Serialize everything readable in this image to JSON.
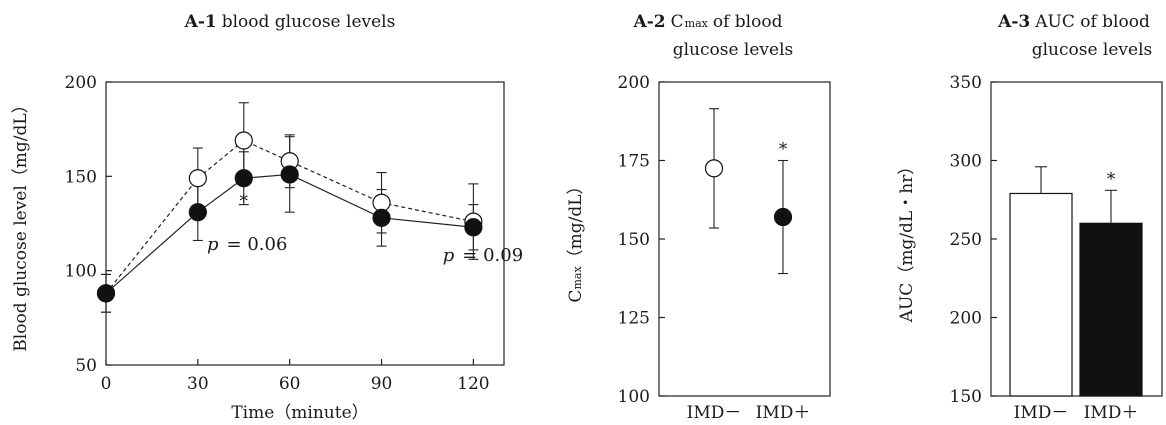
{
  "figure": {
    "panel_a1": {
      "letter": "A-1",
      "title": "blood glucose levels"
    },
    "panel_a2": {
      "letter": "A-2",
      "title_prefix": "C",
      "title_sub": "max",
      "title_rest": "of blood",
      "title_line2": "glucose levels"
    },
    "panel_a3": {
      "letter": "A-3",
      "title_line1": "AUC of blood",
      "title_line2": "glucose levels"
    }
  },
  "chart_data": [
    {
      "type": "line",
      "title": "A-1 blood glucose levels",
      "xlabel": "Time（minute）",
      "ylabel": "Blood glucose level（mg/dL）",
      "xlim": [
        0,
        130
      ],
      "ylim": [
        50,
        200
      ],
      "xticks": [
        "0",
        "30",
        "60",
        "90",
        "120"
      ],
      "yticks": [
        "50",
        "100",
        "150",
        "200"
      ],
      "x": [
        0,
        30,
        45,
        60,
        90,
        120
      ],
      "series": [
        {
          "marker": "open-circle",
          "line": "dashed",
          "values": [
            88,
            149,
            169,
            158,
            136,
            126
          ],
          "error": [
            10,
            16,
            20,
            14,
            16,
            20
          ]
        },
        {
          "marker": "filled-circle",
          "line": "solid",
          "values": [
            88,
            131,
            149,
            151,
            128,
            123
          ],
          "error": [
            10,
            15,
            14,
            20,
            15,
            12
          ]
        }
      ],
      "annotations": [
        {
          "text": "*",
          "x": 45,
          "y": 134
        },
        {
          "text": "p",
          "suffix": "= 0.06",
          "x": 33,
          "y": 111
        },
        {
          "text": "p",
          "suffix": "= 0.09",
          "x": 110,
          "y": 105
        }
      ],
      "grid": false
    },
    {
      "type": "scatter",
      "title": "A-2 Cmax of blood glucose levels",
      "ylabel_main": "C",
      "ylabel_sub": "max",
      "ylabel_rest": "（mg/dL）",
      "categories": [
        "IMD－",
        "IMD＋"
      ],
      "ylim": [
        100,
        200
      ],
      "yticks": [
        "100",
        "125",
        "150",
        "175",
        "200"
      ],
      "values": [
        172.5,
        157
      ],
      "error": [
        19,
        18
      ],
      "markers": [
        "open-circle",
        "filled-circle"
      ],
      "annotations": [
        {
          "text": "*",
          "category": "IMD＋"
        }
      ],
      "grid": false
    },
    {
      "type": "bar",
      "title": "A-3 AUC of blood glucose levels",
      "ylabel": "AUC（mg/dL・hr）",
      "categories": [
        "IMD－",
        "IMD＋"
      ],
      "ylim": [
        150,
        350
      ],
      "yticks": [
        "150",
        "200",
        "250",
        "300",
        "350"
      ],
      "values": [
        279,
        260
      ],
      "error": [
        17,
        21
      ],
      "colors": [
        "#ffffff",
        "#111111"
      ],
      "annotations": [
        {
          "text": "*",
          "category": "IMD＋"
        }
      ],
      "grid": false
    }
  ]
}
